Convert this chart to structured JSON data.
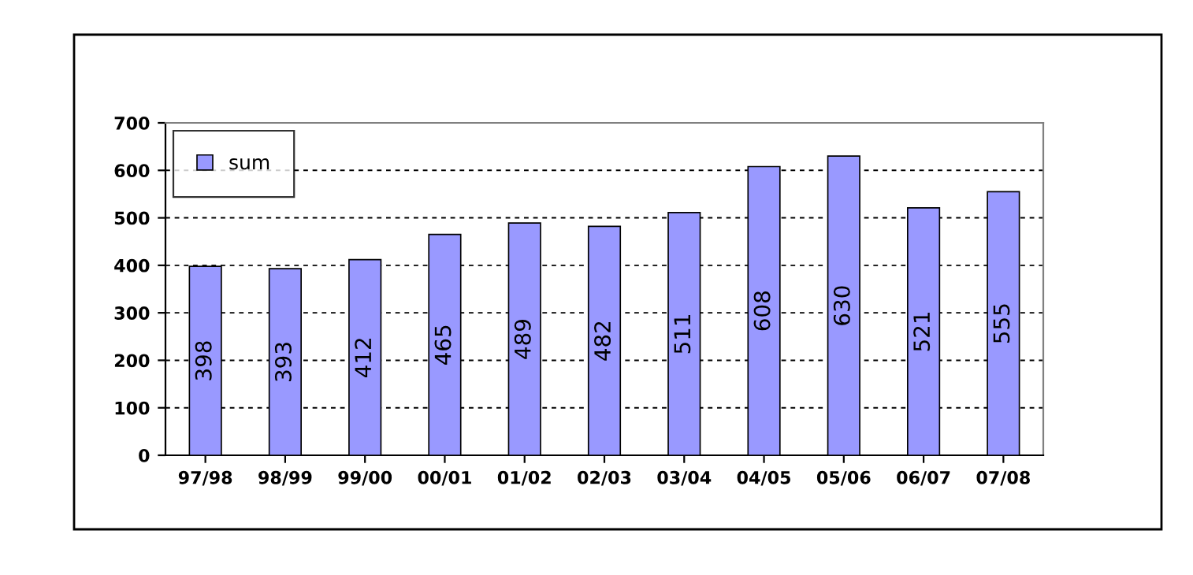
{
  "chart_data": {
    "type": "bar",
    "categories": [
      "97/98",
      "98/99",
      "99/00",
      "00/01",
      "01/02",
      "02/03",
      "03/04",
      "04/05",
      "05/06",
      "06/07",
      "07/08"
    ],
    "series": [
      {
        "name": "sum",
        "color": "#9999ff",
        "values": [
          398,
          393,
          412,
          465,
          489,
          482,
          511,
          608,
          630,
          521,
          555
        ]
      }
    ],
    "ylim": [
      0,
      700
    ],
    "yticks": [
      0,
      100,
      200,
      300,
      400,
      500,
      600,
      700
    ],
    "grid": "y",
    "legend": "top left",
    "data_labels": true
  }
}
